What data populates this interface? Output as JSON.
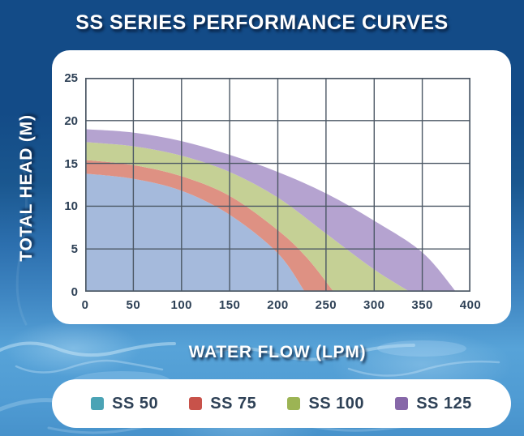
{
  "page": {
    "title": "SS SERIES PERFORMANCE CURVES"
  },
  "colors": {
    "background_top": "#134b87",
    "background_water": "#57a3d8",
    "card_background": "#ffffff",
    "grid_line": "#4c5865",
    "tick_text": "#2e4156",
    "axis_label_text": "#ffffff",
    "title_text": "#ffffff"
  },
  "chart_data": {
    "type": "area",
    "title": "SS SERIES PERFORMANCE CURVES",
    "xlabel": "WATER FLOW (LPM)",
    "ylabel": "TOTAL HEAD (M)",
    "xlim": [
      0,
      400
    ],
    "ylim": [
      0,
      25
    ],
    "x_ticks": [
      0,
      50,
      100,
      150,
      200,
      250,
      300,
      350,
      400
    ],
    "y_ticks": [
      0,
      5,
      10,
      15,
      20,
      25
    ],
    "grid": true,
    "legend_position": "bottom",
    "series": [
      {
        "name": "SS 50",
        "legend_color": "#4BA3B5",
        "fill_color": "#A5BADC",
        "x": [
          0,
          50,
          100,
          150,
          200,
          228
        ],
        "y": [
          13.8,
          13.2,
          11.8,
          9.0,
          4.5,
          0
        ]
      },
      {
        "name": "SS 75",
        "legend_color": "#C8524A",
        "fill_color": "#DE9183",
        "x": [
          0,
          50,
          100,
          150,
          200,
          230,
          258
        ],
        "y": [
          15.4,
          14.8,
          13.5,
          11.2,
          7.2,
          4.0,
          0
        ]
      },
      {
        "name": "SS 100",
        "legend_color": "#9CB454",
        "fill_color": "#C5D095",
        "x": [
          0,
          50,
          100,
          150,
          200,
          250,
          300,
          337
        ],
        "y": [
          17.5,
          17.0,
          15.9,
          14.0,
          11.0,
          6.8,
          2.6,
          0
        ]
      },
      {
        "name": "SS 125",
        "legend_color": "#8667A8",
        "fill_color": "#B5A3D0",
        "x": [
          0,
          50,
          100,
          150,
          200,
          250,
          300,
          350,
          385
        ],
        "y": [
          19.0,
          18.6,
          17.6,
          16.0,
          14.0,
          11.5,
          8.3,
          4.6,
          0
        ]
      }
    ]
  }
}
